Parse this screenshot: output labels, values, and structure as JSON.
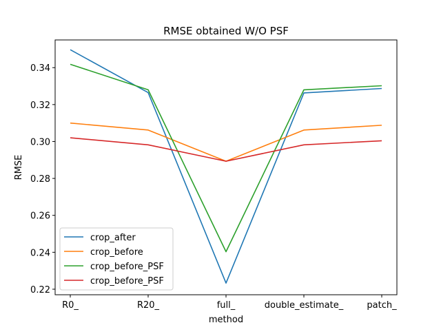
{
  "chart_data": {
    "type": "line",
    "title": "RMSE obtained W/O PSF",
    "xlabel": "method",
    "ylabel": "RMSE",
    "categories": [
      "R0_",
      "R20_",
      "full_",
      "double_estimate_",
      "patch_"
    ],
    "ylim": [
      0.217,
      0.355
    ],
    "yticks": [
      "0.22",
      "0.24",
      "0.26",
      "0.28",
      "0.30",
      "0.32",
      "0.34"
    ],
    "grid": false,
    "legend_position": "lower-left",
    "series": [
      {
        "name": "crop_after",
        "color": "#1f77b4",
        "values": [
          0.3497,
          0.3265,
          0.2233,
          0.3263,
          0.3287
        ]
      },
      {
        "name": "crop_before",
        "color": "#ff7f0e",
        "values": [
          0.31,
          0.3062,
          0.2893,
          0.3062,
          0.3088
        ]
      },
      {
        "name": "crop_before_PSF",
        "color": "#2ca02c",
        "values": [
          0.3418,
          0.328,
          0.2403,
          0.328,
          0.3302
        ]
      },
      {
        "name": "crop_before_PSF",
        "color": "#d62728",
        "values": [
          0.302,
          0.2982,
          0.2893,
          0.2982,
          0.3004
        ]
      }
    ]
  }
}
